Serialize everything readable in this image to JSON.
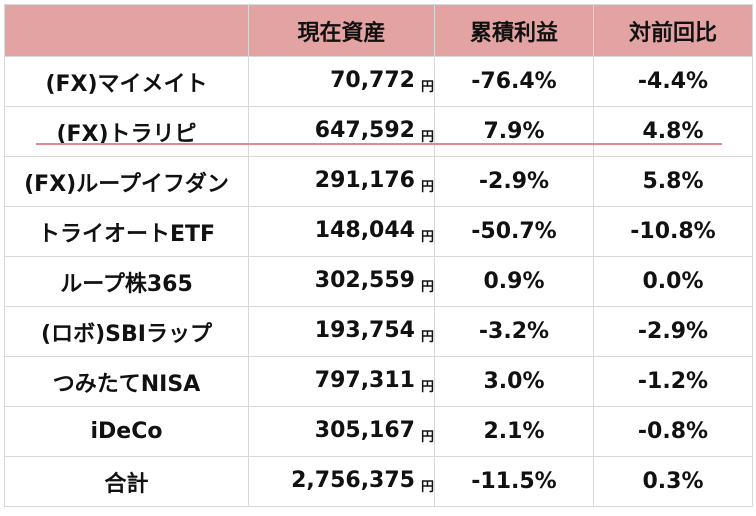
{
  "headers": {
    "name": "",
    "current_assets": "現在資産",
    "cumulative_return": "累積利益",
    "vs_prev": "対前回比"
  },
  "currency_unit": "円",
  "rows": [
    {
      "name": "(FX)マイメイト",
      "value": "70,772",
      "cumulative": "-76.4%",
      "change": "-4.4%"
    },
    {
      "name": "(FX)トラリピ",
      "value": "647,592",
      "cumulative": "7.9%",
      "change": "4.8%"
    },
    {
      "name": "(FX)ループイフダン",
      "value": "291,176",
      "cumulative": "-2.9%",
      "change": "5.8%"
    },
    {
      "name": "トライオートETF",
      "value": "148,044",
      "cumulative": "-50.7%",
      "change": "-10.8%"
    },
    {
      "name": "ループ株365",
      "value": "302,559",
      "cumulative": "0.9%",
      "change": "0.0%"
    },
    {
      "name": "(ロボ)SBIラップ",
      "value": "193,754",
      "cumulative": "-3.2%",
      "change": "-2.9%"
    },
    {
      "name": "つみたてNISA",
      "value": "797,311",
      "cumulative": "3.0%",
      "change": "-1.2%"
    },
    {
      "name": "iDeCo",
      "value": "305,167",
      "cumulative": "2.1%",
      "change": "-0.8%"
    },
    {
      "name": "合計",
      "value": "2,756,375",
      "cumulative": "-11.5%",
      "change": "0.3%"
    }
  ],
  "colors": {
    "header_bg": "#e3a3a3",
    "underline": "#e3898f",
    "grid": "#d9d9d9"
  }
}
